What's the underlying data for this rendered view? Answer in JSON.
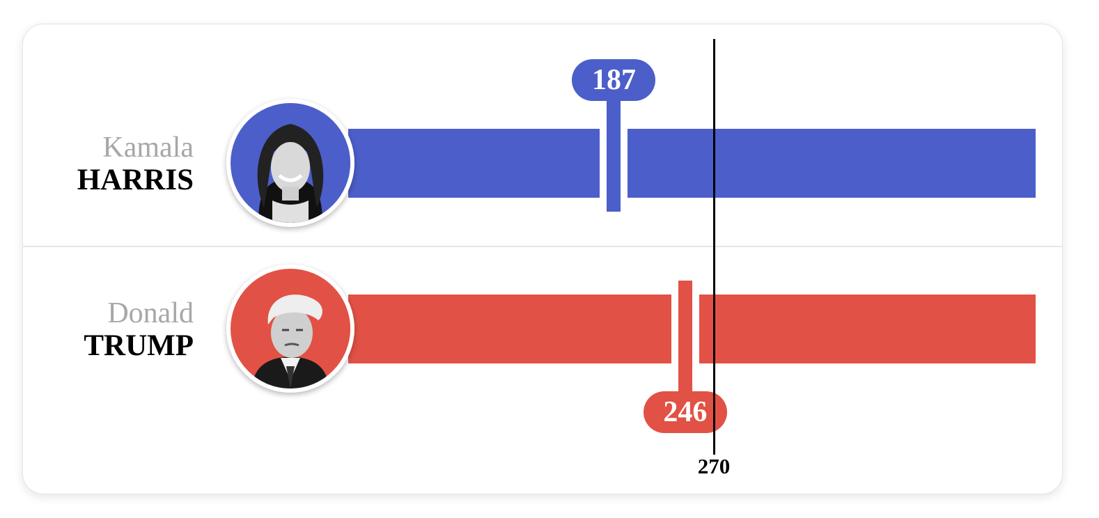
{
  "chart_data": {
    "type": "bar",
    "title": "",
    "threshold": {
      "value": 270,
      "label": "270"
    },
    "series": [
      {
        "first_name": "Kamala",
        "last_name": "HARRIS",
        "value": 187,
        "value_label": "187",
        "color": "#4c5ec9",
        "photo": "harris-portrait-icon"
      },
      {
        "first_name": "Donald",
        "last_name": "TRUMP",
        "value": 246,
        "value_label": "246",
        "color": "#e25145",
        "photo": "trump-portrait-icon"
      }
    ]
  }
}
